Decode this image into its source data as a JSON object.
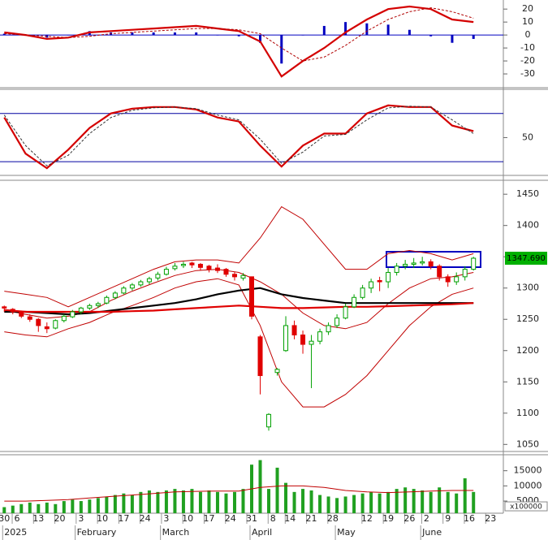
{
  "chart_data": [
    {
      "type": "line",
      "xlim": [
        -1,
        117
      ],
      "ylim": [
        -40,
        27
      ],
      "yticks": [
        20,
        10,
        0,
        -10,
        -20,
        -30
      ],
      "baseline": 0,
      "x": [
        0,
        5,
        10,
        15,
        20,
        25,
        30,
        35,
        40,
        45,
        50,
        55,
        60,
        65,
        70,
        75,
        80,
        85,
        90,
        95,
        100,
        105,
        110
      ],
      "series": [
        {
          "style": "histogram",
          "color": "#0000c0",
          "values": [
            1,
            0,
            -2,
            0,
            3,
            2,
            2,
            2,
            2,
            2,
            0,
            -1,
            -6,
            -22,
            0,
            7,
            10,
            9,
            8,
            4,
            -1,
            -6,
            -3
          ]
        },
        {
          "style": "thick",
          "color": "#d40000",
          "values": [
            2,
            0,
            -3,
            -2,
            2,
            3,
            4,
            5,
            6,
            7,
            5,
            3,
            -5,
            -32,
            -20,
            -10,
            2,
            12,
            20,
            22,
            20,
            12,
            10
          ]
        },
        {
          "style": "dashed",
          "color": "#b00000",
          "values": [
            1,
            0,
            -1,
            -2,
            -1,
            1,
            2,
            3,
            4,
            5,
            5,
            4,
            1,
            -10,
            -20,
            -17,
            -8,
            3,
            12,
            18,
            21,
            18,
            13
          ]
        }
      ]
    },
    {
      "type": "line",
      "xlim": [
        -1,
        117
      ],
      "ylim": [
        4,
        109
      ],
      "yticks": [
        50
      ],
      "levels": [
        20,
        80
      ],
      "x": [
        0,
        5,
        10,
        15,
        20,
        25,
        30,
        35,
        40,
        45,
        50,
        55,
        60,
        65,
        70,
        75,
        80,
        85,
        90,
        95,
        100,
        105,
        110
      ],
      "series": [
        {
          "style": "thick",
          "color": "#d40000",
          "values": [
            75,
            30,
            12,
            35,
            62,
            80,
            86,
            88,
            88,
            85,
            75,
            70,
            40,
            14,
            40,
            55,
            55,
            80,
            90,
            88,
            88,
            65,
            58
          ]
        },
        {
          "style": "dashed",
          "color": "#333333",
          "values": [
            78,
            40,
            15,
            28,
            55,
            75,
            84,
            87,
            88,
            86,
            78,
            72,
            48,
            18,
            32,
            52,
            54,
            72,
            87,
            89,
            88,
            72,
            55
          ]
        }
      ]
    },
    {
      "type": "candlestick",
      "xlim": [
        -1,
        117
      ],
      "ylim": [
        1040,
        1471
      ],
      "yticks": [
        1450,
        1400,
        1350,
        1300,
        1250,
        1200,
        1150,
        1100,
        1050
      ],
      "up_color": "#00a000",
      "down_color": "#e00000",
      "candles": {
        "x": [
          0,
          2,
          4,
          6,
          8,
          10,
          12,
          14,
          16,
          18,
          20,
          22,
          24,
          26,
          28,
          30,
          32,
          34,
          36,
          38,
          40,
          42,
          44,
          46,
          48,
          50,
          52,
          54,
          56,
          58,
          60,
          62,
          64,
          66,
          68,
          70,
          72,
          74,
          76,
          78,
          80,
          82,
          84,
          86,
          88,
          90,
          92,
          94,
          96,
          98,
          100,
          102,
          104,
          106,
          108,
          110
        ],
        "ohlc": [
          [
            1270,
            1272,
            1262,
            1268
          ],
          [
            1266,
            1268,
            1258,
            1262
          ],
          [
            1262,
            1264,
            1252,
            1255
          ],
          [
            1254,
            1258,
            1246,
            1250
          ],
          [
            1250,
            1252,
            1230,
            1240
          ],
          [
            1238,
            1245,
            1228,
            1235
          ],
          [
            1236,
            1250,
            1234,
            1248
          ],
          [
            1248,
            1258,
            1245,
            1255
          ],
          [
            1254,
            1265,
            1252,
            1262
          ],
          [
            1262,
            1270,
            1258,
            1268
          ],
          [
            1268,
            1275,
            1265,
            1272
          ],
          [
            1272,
            1278,
            1268,
            1275
          ],
          [
            1276,
            1288,
            1274,
            1285
          ],
          [
            1285,
            1295,
            1282,
            1292
          ],
          [
            1292,
            1303,
            1290,
            1300
          ],
          [
            1300,
            1308,
            1296,
            1305
          ],
          [
            1305,
            1313,
            1302,
            1310
          ],
          [
            1310,
            1318,
            1306,
            1315
          ],
          [
            1316,
            1326,
            1312,
            1322
          ],
          [
            1322,
            1334,
            1320,
            1330
          ],
          [
            1331,
            1340,
            1328,
            1335
          ],
          [
            1336,
            1342,
            1332,
            1338
          ],
          [
            1340,
            1342,
            1332,
            1337
          ],
          [
            1338,
            1340,
            1328,
            1333
          ],
          [
            1335,
            1337,
            1325,
            1330
          ],
          [
            1332,
            1338,
            1324,
            1328
          ],
          [
            1330,
            1332,
            1318,
            1322
          ],
          [
            1322,
            1326,
            1312,
            1318
          ],
          [
            1316,
            1324,
            1312,
            1320
          ],
          [
            1318,
            1318,
            1250,
            1255
          ],
          [
            1222,
            1225,
            1130,
            1160
          ],
          [
            1078,
            1100,
            1072,
            1098
          ],
          [
            1165,
            1172,
            1160,
            1170
          ],
          [
            1200,
            1255,
            1198,
            1240
          ],
          [
            1240,
            1248,
            1218,
            1225
          ],
          [
            1225,
            1232,
            1195,
            1210
          ],
          [
            1210,
            1225,
            1140,
            1215
          ],
          [
            1215,
            1235,
            1210,
            1230
          ],
          [
            1230,
            1245,
            1225,
            1240
          ],
          [
            1240,
            1258,
            1236,
            1252
          ],
          [
            1252,
            1275,
            1250,
            1270
          ],
          [
            1270,
            1290,
            1268,
            1285
          ],
          [
            1285,
            1305,
            1282,
            1300
          ],
          [
            1300,
            1315,
            1292,
            1310
          ],
          [
            1312,
            1318,
            1295,
            1310
          ],
          [
            1310,
            1332,
            1300,
            1325
          ],
          [
            1325,
            1340,
            1320,
            1335
          ],
          [
            1335,
            1345,
            1330,
            1338
          ],
          [
            1338,
            1348,
            1332,
            1340
          ],
          [
            1340,
            1350,
            1336,
            1342
          ],
          [
            1342,
            1346,
            1330,
            1335
          ],
          [
            1335,
            1338,
            1312,
            1318
          ],
          [
            1318,
            1322,
            1302,
            1310
          ],
          [
            1310,
            1325,
            1305,
            1318
          ],
          [
            1318,
            1335,
            1312,
            1330
          ],
          [
            1330,
            1350,
            1328,
            1347.69
          ]
        ]
      },
      "x": [
        0,
        5,
        10,
        15,
        20,
        25,
        30,
        35,
        40,
        45,
        50,
        55,
        60,
        65,
        70,
        75,
        80,
        85,
        90,
        95,
        100,
        105,
        110
      ],
      "series": [
        {
          "style": "line",
          "color": "#c00000",
          "values": [
            1295,
            1290,
            1285,
            1270,
            1285,
            1300,
            1315,
            1330,
            1342,
            1345,
            1345,
            1340,
            1380,
            1430,
            1410,
            1370,
            1330,
            1330,
            1355,
            1360,
            1355,
            1345,
            1355
          ]
        },
        {
          "style": "line",
          "color": "#c00000",
          "values": [
            1230,
            1225,
            1222,
            1235,
            1245,
            1260,
            1272,
            1285,
            1300,
            1310,
            1315,
            1305,
            1240,
            1150,
            1110,
            1110,
            1130,
            1160,
            1200,
            1240,
            1270,
            1290,
            1300
          ]
        },
        {
          "style": "line",
          "color": "#c00000",
          "values": [
            1265,
            1258,
            1252,
            1255,
            1262,
            1280,
            1295,
            1308,
            1320,
            1328,
            1330,
            1325,
            1310,
            1290,
            1260,
            1240,
            1235,
            1245,
            1275,
            1300,
            1315,
            1318,
            1325
          ]
        },
        {
          "style": "thick",
          "color": "#000000",
          "values": [
            1262,
            1262,
            1260,
            1258,
            1260,
            1264,
            1268,
            1272,
            1276,
            1282,
            1290,
            1296,
            1300,
            1290,
            1284,
            1280,
            1276,
            1276,
            1276,
            1276,
            1276,
            1276,
            1276
          ]
        },
        {
          "style": "thick",
          "color": "#e00000",
          "values": [
            1265,
            1262,
            1262,
            1262,
            1262,
            1262,
            1263,
            1264,
            1266,
            1268,
            1270,
            1272,
            1270,
            1268,
            1268,
            1269,
            1270,
            1270,
            1271,
            1272,
            1273,
            1274,
            1276
          ]
        }
      ],
      "last_price": {
        "value": 1347.69,
        "label": "1347.690"
      }
    },
    {
      "type": "bar",
      "xlim": [
        -1,
        117
      ],
      "ylim": [
        1000,
        20000
      ],
      "yticks": [
        15000,
        10000,
        {
          "value": 5000,
          "label": "5000"
        }
      ],
      "unit": "x100000",
      "color": "#20a020",
      "x": [
        0,
        2,
        4,
        6,
        8,
        10,
        12,
        14,
        16,
        18,
        20,
        22,
        24,
        26,
        28,
        30,
        32,
        34,
        36,
        38,
        40,
        42,
        44,
        46,
        48,
        50,
        52,
        54,
        56,
        58,
        60,
        62,
        64,
        66,
        68,
        70,
        72,
        74,
        76,
        78,
        80,
        82,
        84,
        86,
        88,
        90,
        92,
        94,
        96,
        98,
        100,
        102,
        104,
        106,
        108,
        110
      ],
      "values": [
        3000,
        3500,
        4000,
        4500,
        4000,
        4500,
        4000,
        5000,
        5500,
        5000,
        5500,
        6000,
        6500,
        7000,
        7500,
        7000,
        8000,
        8500,
        8000,
        8500,
        9000,
        8500,
        9000,
        8000,
        8500,
        8000,
        7500,
        8000,
        9000,
        17000,
        18500,
        9000,
        16000,
        11000,
        8000,
        9000,
        8500,
        7000,
        6500,
        6000,
        6500,
        7000,
        7500,
        8000,
        7500,
        8000,
        9000,
        9500,
        9000,
        8500,
        8000,
        9500,
        8000,
        7500,
        12500,
        8000
      ],
      "ma": {
        "color": "#c00000",
        "x": [
          0,
          5,
          10,
          15,
          20,
          25,
          30,
          35,
          40,
          45,
          50,
          55,
          60,
          65,
          70,
          75,
          80,
          85,
          90,
          95,
          100,
          105,
          110
        ],
        "values": [
          5000,
          5000,
          5200,
          5500,
          6000,
          6500,
          7000,
          7500,
          8000,
          8200,
          8300,
          8300,
          9500,
          10000,
          10000,
          9500,
          8500,
          8000,
          7800,
          8000,
          8300,
          8500,
          8500
        ]
      },
      "xticks": [
        {
          "value": 0,
          "label": "30"
        },
        {
          "value": 3,
          "label": "6"
        },
        {
          "value": 8,
          "label": "13"
        },
        {
          "value": 13,
          "label": "20"
        },
        {
          "value": 18,
          "label": "3"
        },
        {
          "value": 23,
          "label": "10"
        },
        {
          "value": 28,
          "label": "17"
        },
        {
          "value": 33,
          "label": "24"
        },
        {
          "value": 38,
          "label": "3"
        },
        {
          "value": 43,
          "label": "10"
        },
        {
          "value": 48,
          "label": "17"
        },
        {
          "value": 53,
          "label": "24"
        },
        {
          "value": 58,
          "label": "31"
        },
        {
          "value": 63,
          "label": "8"
        },
        {
          "value": 67,
          "label": "14"
        },
        {
          "value": 72,
          "label": "21"
        },
        {
          "value": 77,
          "label": "28"
        },
        {
          "value": 85,
          "label": "12"
        },
        {
          "value": 90,
          "label": "19"
        },
        {
          "value": 95,
          "label": "26"
        },
        {
          "value": 99,
          "label": "2"
        },
        {
          "value": 104,
          "label": "9"
        },
        {
          "value": 109,
          "label": "16"
        },
        {
          "value": 114,
          "label": "23"
        }
      ],
      "month_ticks": [
        {
          "value": 0,
          "label": "2025"
        },
        {
          "value": 17,
          "label": "February"
        },
        {
          "value": 37,
          "label": "March"
        },
        {
          "value": 58,
          "label": "April"
        },
        {
          "value": 78,
          "label": "May"
        },
        {
          "value": 98,
          "label": "June"
        }
      ]
    }
  ]
}
